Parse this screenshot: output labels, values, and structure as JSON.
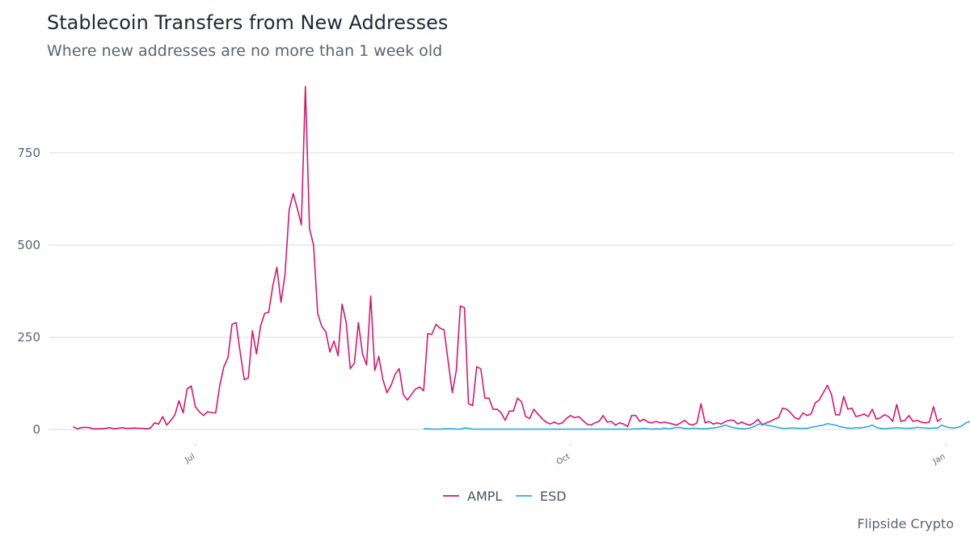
{
  "title": "Stablecoin Transfers from New Addresses",
  "subtitle": "Where new addresses are no more than 1 week old",
  "caption": "Flipside Crypto",
  "colors": {
    "AMPL": "#d6186f",
    "ESD": "#2bace2",
    "grid": "#e5e7eb"
  },
  "chart_data": {
    "type": "line",
    "title": "Stablecoin Transfers from New Addresses",
    "subtitle": "Where new addresses are no more than 1 week old",
    "xlabel": "",
    "ylabel": "",
    "x_ticks": [
      {
        "date": "2020-07-01",
        "label": "Jul"
      },
      {
        "date": "2020-10-01",
        "label": "Oct"
      },
      {
        "date": "2021-01-01",
        "label": "Jan"
      }
    ],
    "y_ticks": [
      0,
      250,
      500,
      750
    ],
    "ylim": [
      -10,
      935
    ],
    "xlim": [
      "2020-05-26",
      "2021-01-03"
    ],
    "grid": true,
    "legend_position": "bottom",
    "series": [
      {
        "name": "AMPL",
        "color": "#d6186f",
        "start_date": "2020-06-01",
        "values": [
          8,
          2,
          5,
          6,
          5,
          2,
          2,
          2,
          3,
          5,
          2,
          3,
          5,
          3,
          3,
          4,
          3,
          3,
          2,
          4,
          18,
          15,
          35,
          12,
          25,
          40,
          78,
          45,
          110,
          118,
          62,
          48,
          38,
          48,
          46,
          45,
          120,
          170,
          195,
          285,
          290,
          210,
          135,
          140,
          268,
          205,
          280,
          315,
          318,
          390,
          440,
          345,
          420,
          595,
          640,
          600,
          555,
          930,
          545,
          500,
          315,
          280,
          265,
          210,
          240,
          200,
          340,
          290,
          165,
          180,
          290,
          205,
          175,
          362,
          160,
          198,
          135,
          100,
          120,
          150,
          165,
          95,
          80,
          95,
          110,
          115,
          105,
          260,
          258,
          285,
          275,
          270,
          185,
          100,
          160,
          335,
          330,
          70,
          65,
          170,
          165,
          85,
          85,
          55,
          55,
          45,
          25,
          50,
          50,
          85,
          75,
          35,
          30,
          55,
          42,
          30,
          20,
          15,
          20,
          15,
          18,
          30,
          38,
          32,
          35,
          25,
          15,
          12,
          18,
          22,
          38,
          20,
          22,
          12,
          18,
          15,
          8,
          38,
          38,
          22,
          28,
          20,
          18,
          22,
          18,
          20,
          18,
          15,
          12,
          18,
          25,
          15,
          12,
          18,
          70,
          18,
          22,
          15,
          18,
          15,
          22,
          25,
          25,
          15,
          20,
          15,
          12,
          18,
          28,
          12,
          18,
          22,
          28,
          32,
          58,
          55,
          45,
          32,
          28,
          45,
          38,
          42,
          72,
          80,
          100,
          120,
          95,
          40,
          40,
          90,
          55,
          58,
          35,
          38,
          42,
          35,
          55,
          28,
          32,
          40,
          35,
          22,
          68,
          22,
          25,
          38,
          22,
          25,
          20,
          18,
          20,
          62,
          22,
          30
        ]
      },
      {
        "name": "ESD",
        "color": "#2bace2",
        "start_date": "2020-08-26",
        "values": [
          2,
          2,
          1,
          1,
          1,
          2,
          2,
          2,
          1,
          1,
          4,
          3,
          1,
          1,
          1,
          1,
          1,
          1,
          1,
          1,
          1,
          1,
          1,
          1,
          1,
          1,
          1,
          1,
          1,
          1,
          1,
          1,
          1,
          1,
          1,
          1,
          1,
          1,
          1,
          1,
          1,
          1,
          1,
          1,
          1,
          1,
          1,
          1,
          1,
          1,
          1,
          1,
          2,
          2,
          3,
          2,
          1,
          2,
          1,
          4,
          2,
          3,
          6,
          5,
          3,
          2,
          3,
          3,
          2,
          2,
          3,
          4,
          6,
          8,
          12,
          8,
          5,
          3,
          2,
          2,
          4,
          8,
          14,
          16,
          12,
          10,
          8,
          5,
          3,
          3,
          4,
          4,
          3,
          3,
          3,
          6,
          8,
          10,
          12,
          16,
          14,
          12,
          8,
          6,
          4,
          3,
          5,
          4,
          6,
          8,
          12,
          6,
          3,
          2,
          3,
          4,
          5,
          4,
          3,
          3,
          4,
          6,
          5,
          4,
          3,
          4,
          4,
          12,
          8,
          5,
          4,
          6,
          10,
          18,
          22,
          15,
          18,
          32,
          20,
          18,
          20,
          15,
          30,
          25,
          22,
          28,
          18,
          22,
          26,
          25,
          20,
          22,
          18,
          15,
          20,
          25
        ]
      }
    ]
  }
}
